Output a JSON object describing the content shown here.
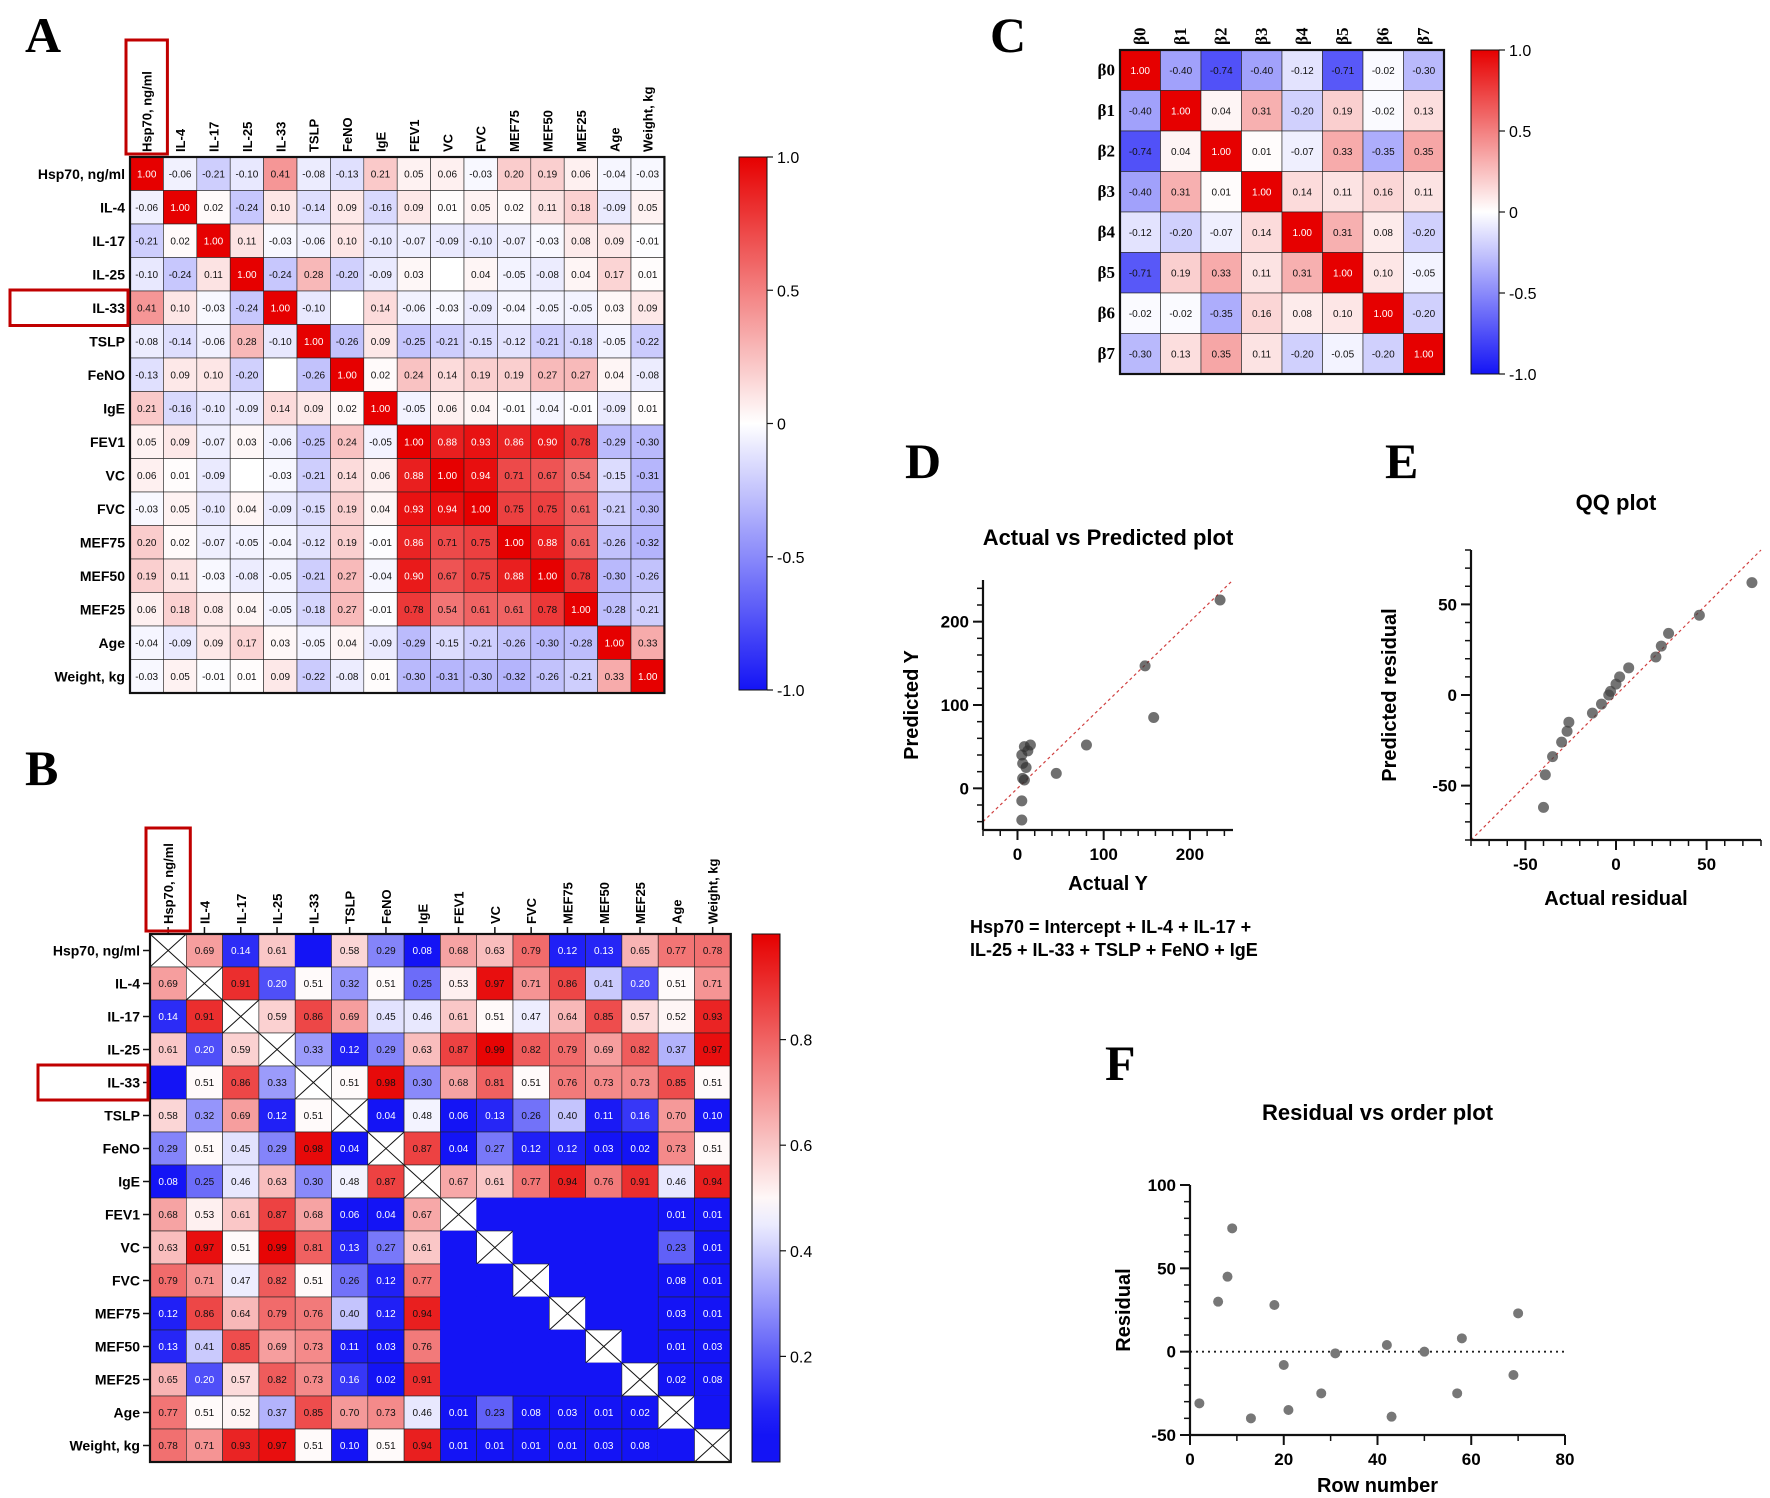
{
  "panel_labels": {
    "A": "A",
    "B": "B",
    "C": "C",
    "D": "D",
    "E": "E",
    "F": "F"
  },
  "chart_data": [
    {
      "id": "A",
      "type": "heatmap",
      "scale": "diverging",
      "cbar_range": [
        -1,
        1
      ],
      "cbar_ticks": [
        "1.0",
        "0.5",
        "0",
        "-0.5",
        "-1.0"
      ],
      "labels": [
        "Hsp70, ng/ml",
        "IL-4",
        "IL-17",
        "IL-25",
        "IL-33",
        "TSLP",
        "FeNO",
        "IgE",
        "FEV1",
        "VC",
        "FVC",
        "MEF75",
        "MEF50",
        "MEF25",
        "Age",
        "Weight, kg"
      ],
      "highlight": [
        0,
        4
      ],
      "values": [
        [
          "1.00",
          "-0.06",
          "-0.21",
          "-0.10",
          "0.41",
          "-0.08",
          "-0.13",
          "0.21",
          "0.05",
          "0.06",
          "-0.03",
          "0.20",
          "0.19",
          "0.06",
          "-0.04",
          "-0.03"
        ],
        [
          "-0.06",
          "1.00",
          "0.02",
          "-0.24",
          "0.10",
          "-0.14",
          "0.09",
          "-0.16",
          "0.09",
          "0.01",
          "0.05",
          "0.02",
          "0.11",
          "0.18",
          "-0.09",
          "0.05"
        ],
        [
          "-0.21",
          "0.02",
          "1.00",
          "0.11",
          "-0.03",
          "-0.06",
          "0.10",
          "-0.10",
          "-0.07",
          "-0.09",
          "-0.10",
          "-0.07",
          "-0.03",
          "0.08",
          "0.09",
          "-0.01"
        ],
        [
          "-0.10",
          "-0.24",
          "0.11",
          "1.00",
          "-0.24",
          "0.28",
          "-0.20",
          "-0.09",
          "0.03",
          "",
          "0.04",
          "-0.05",
          "-0.08",
          "0.04",
          "0.17",
          "0.01"
        ],
        [
          "0.41",
          "0.10",
          "-0.03",
          "-0.24",
          "1.00",
          "-0.10",
          "",
          "0.14",
          "-0.06",
          "-0.03",
          "-0.09",
          "-0.04",
          "-0.05",
          "-0.05",
          "0.03",
          "0.09"
        ],
        [
          "-0.08",
          "-0.14",
          "-0.06",
          "0.28",
          "-0.10",
          "1.00",
          "-0.26",
          "0.09",
          "-0.25",
          "-0.21",
          "-0.15",
          "-0.12",
          "-0.21",
          "-0.18",
          "-0.05",
          "-0.22"
        ],
        [
          "-0.13",
          "0.09",
          "0.10",
          "-0.20",
          "",
          "-0.26",
          "1.00",
          "0.02",
          "0.24",
          "0.14",
          "0.19",
          "0.19",
          "0.27",
          "0.27",
          "0.04",
          "-0.08"
        ],
        [
          "0.21",
          "-0.16",
          "-0.10",
          "-0.09",
          "0.14",
          "0.09",
          "0.02",
          "1.00",
          "-0.05",
          "0.06",
          "0.04",
          "-0.01",
          "-0.04",
          "-0.01",
          "-0.09",
          "0.01"
        ],
        [
          "0.05",
          "0.09",
          "-0.07",
          "0.03",
          "-0.06",
          "-0.25",
          "0.24",
          "-0.05",
          "1.00",
          "0.88",
          "0.93",
          "0.86",
          "0.90",
          "0.78",
          "-0.29",
          "-0.30"
        ],
        [
          "0.06",
          "0.01",
          "-0.09",
          "",
          "-0.03",
          "-0.21",
          "0.14",
          "0.06",
          "0.88",
          "1.00",
          "0.94",
          "0.71",
          "0.67",
          "0.54",
          "-0.15",
          "-0.31"
        ],
        [
          "-0.03",
          "0.05",
          "-0.10",
          "0.04",
          "-0.09",
          "-0.15",
          "0.19",
          "0.04",
          "0.93",
          "0.94",
          "1.00",
          "0.75",
          "0.75",
          "0.61",
          "-0.21",
          "-0.30"
        ],
        [
          "0.20",
          "0.02",
          "-0.07",
          "-0.05",
          "-0.04",
          "-0.12",
          "0.19",
          "-0.01",
          "0.86",
          "0.71",
          "0.75",
          "1.00",
          "0.88",
          "0.61",
          "-0.26",
          "-0.32"
        ],
        [
          "0.19",
          "0.11",
          "-0.03",
          "-0.08",
          "-0.05",
          "-0.21",
          "0.27",
          "-0.04",
          "0.90",
          "0.67",
          "0.75",
          "0.88",
          "1.00",
          "0.78",
          "-0.30",
          "-0.26"
        ],
        [
          "0.06",
          "0.18",
          "0.08",
          "0.04",
          "-0.05",
          "-0.18",
          "0.27",
          "-0.01",
          "0.78",
          "0.54",
          "0.61",
          "0.61",
          "0.78",
          "1.00",
          "-0.28",
          "-0.21"
        ],
        [
          "-0.04",
          "-0.09",
          "0.09",
          "0.17",
          "0.03",
          "-0.05",
          "0.04",
          "-0.09",
          "-0.29",
          "-0.15",
          "-0.21",
          "-0.26",
          "-0.30",
          "-0.28",
          "1.00",
          "0.33"
        ],
        [
          "-0.03",
          "0.05",
          "-0.01",
          "0.01",
          "0.09",
          "-0.22",
          "-0.08",
          "0.01",
          "-0.30",
          "-0.31",
          "-0.30",
          "-0.32",
          "-0.26",
          "-0.21",
          "0.33",
          "1.00"
        ]
      ]
    },
    {
      "id": "B",
      "type": "heatmap",
      "scale": "pvalue",
      "cbar_range": [
        0,
        1
      ],
      "cbar_ticks": [
        "0.8",
        "0.6",
        "0.4",
        "0.2"
      ],
      "labels": [
        "Hsp70, ng/ml",
        "IL-4",
        "IL-17",
        "IL-25",
        "IL-33",
        "TSLP",
        "FeNO",
        "IgE",
        "FEV1",
        "VC",
        "FVC",
        "MEF75",
        "MEF50",
        "MEF25",
        "Age",
        "Weight, kg"
      ],
      "highlight": [
        0,
        4
      ],
      "values": [
        [
          "X",
          "0.69",
          "0.14",
          "0.61",
          "",
          "0.58",
          "0.29",
          "0.08",
          "0.68",
          "0.63",
          "0.79",
          "0.12",
          "0.13",
          "0.65",
          "0.77",
          "0.78"
        ],
        [
          "0.69",
          "X",
          "0.91",
          "0.20",
          "0.51",
          "0.32",
          "0.51",
          "0.25",
          "0.53",
          "0.97",
          "0.71",
          "0.86",
          "0.41",
          "0.20",
          "0.51",
          "0.71"
        ],
        [
          "0.14",
          "0.91",
          "X",
          "0.59",
          "0.86",
          "0.69",
          "0.45",
          "0.46",
          "0.61",
          "0.51",
          "0.47",
          "0.64",
          "0.85",
          "0.57",
          "0.52",
          "0.93"
        ],
        [
          "0.61",
          "0.20",
          "0.59",
          "X",
          "0.33",
          "0.12",
          "0.29",
          "0.63",
          "0.87",
          "0.99",
          "0.82",
          "0.79",
          "0.69",
          "0.82",
          "0.37",
          "0.97"
        ],
        [
          "",
          "0.51",
          "0.86",
          "0.33",
          "X",
          "0.51",
          "0.98",
          "0.30",
          "0.68",
          "0.81",
          "0.51",
          "0.76",
          "0.73",
          "0.73",
          "0.85",
          "0.51"
        ],
        [
          "0.58",
          "0.32",
          "0.69",
          "0.12",
          "0.51",
          "X",
          "0.04",
          "0.48",
          "0.06",
          "0.13",
          "0.26",
          "0.40",
          "0.11",
          "0.16",
          "0.70",
          "0.10"
        ],
        [
          "0.29",
          "0.51",
          "0.45",
          "0.29",
          "0.98",
          "0.04",
          "X",
          "0.87",
          "0.04",
          "0.27",
          "0.12",
          "0.12",
          "0.03",
          "0.02",
          "0.73",
          "0.51"
        ],
        [
          "0.08",
          "0.25",
          "0.46",
          "0.63",
          "0.30",
          "0.48",
          "0.87",
          "X",
          "0.67",
          "0.61",
          "0.77",
          "0.94",
          "0.76",
          "0.91",
          "0.46",
          "0.94"
        ],
        [
          "0.68",
          "0.53",
          "0.61",
          "0.87",
          "0.68",
          "0.06",
          "0.04",
          "0.67",
          "X",
          "",
          "",
          "",
          "",
          "",
          "0.01",
          "0.01"
        ],
        [
          "0.63",
          "0.97",
          "0.51",
          "0.99",
          "0.81",
          "0.13",
          "0.27",
          "0.61",
          "",
          "X",
          "",
          "",
          "",
          "",
          "0.23",
          "0.01"
        ],
        [
          "0.79",
          "0.71",
          "0.47",
          "0.82",
          "0.51",
          "0.26",
          "0.12",
          "0.77",
          "",
          "",
          "X",
          "",
          "",
          "",
          "0.08",
          "0.01"
        ],
        [
          "0.12",
          "0.86",
          "0.64",
          "0.79",
          "0.76",
          "0.40",
          "0.12",
          "0.94",
          "",
          "",
          "",
          "X",
          "",
          "",
          "0.03",
          "0.01"
        ],
        [
          "0.13",
          "0.41",
          "0.85",
          "0.69",
          "0.73",
          "0.11",
          "0.03",
          "0.76",
          "",
          "",
          "",
          "",
          "X",
          "",
          "0.01",
          "0.03"
        ],
        [
          "0.65",
          "0.20",
          "0.57",
          "0.82",
          "0.73",
          "0.16",
          "0.02",
          "0.91",
          "",
          "",
          "",
          "",
          "",
          "X",
          "0.02",
          "0.08"
        ],
        [
          "0.77",
          "0.51",
          "0.52",
          "0.37",
          "0.85",
          "0.70",
          "0.73",
          "0.46",
          "0.01",
          "0.23",
          "0.08",
          "0.03",
          "0.01",
          "0.02",
          "X",
          ""
        ],
        [
          "0.78",
          "0.71",
          "0.93",
          "0.97",
          "0.51",
          "0.10",
          "0.51",
          "0.94",
          "0.01",
          "0.01",
          "0.01",
          "0.01",
          "0.03",
          "0.08",
          "",
          "X"
        ]
      ]
    },
    {
      "id": "C",
      "type": "heatmap",
      "scale": "diverging",
      "cbar_range": [
        -1,
        1
      ],
      "cbar_ticks": [
        "1.0",
        "0.5",
        "0",
        "-0.5",
        "-1.0"
      ],
      "labels": [
        "β0",
        "β1",
        "β2",
        "β3",
        "β4",
        "β5",
        "β6",
        "β7"
      ],
      "values": [
        [
          "1.00",
          "-0.40",
          "-0.74",
          "-0.40",
          "-0.12",
          "-0.71",
          "-0.02",
          "-0.30"
        ],
        [
          "-0.40",
          "1.00",
          "0.04",
          "0.31",
          "-0.20",
          "0.19",
          "-0.02",
          "0.13"
        ],
        [
          "-0.74",
          "0.04",
          "1.00",
          "0.01",
          "-0.07",
          "0.33",
          "-0.35",
          "0.35"
        ],
        [
          "-0.40",
          "0.31",
          "0.01",
          "1.00",
          "0.14",
          "0.11",
          "0.16",
          "0.11"
        ],
        [
          "-0.12",
          "-0.20",
          "-0.07",
          "0.14",
          "1.00",
          "0.31",
          "0.08",
          "-0.20"
        ],
        [
          "-0.71",
          "0.19",
          "0.33",
          "0.11",
          "0.31",
          "1.00",
          "0.10",
          "-0.05"
        ],
        [
          "-0.02",
          "-0.02",
          "-0.35",
          "0.16",
          "0.08",
          "0.10",
          "1.00",
          "-0.20"
        ],
        [
          "-0.30",
          "0.13",
          "0.35",
          "0.11",
          "-0.20",
          "-0.05",
          "-0.20",
          "1.00"
        ]
      ]
    },
    {
      "id": "D",
      "type": "scatter",
      "title": "Actual vs Predicted plot",
      "xlabel": "Actual Y",
      "ylabel": "Predicted Y",
      "xlim": [
        -40,
        250
      ],
      "ylim": [
        -50,
        250
      ],
      "xticks": [
        "0",
        "100",
        "200"
      ],
      "yticks": [
        "0",
        "100",
        "200"
      ],
      "points": [
        [
          8,
          50
        ],
        [
          12,
          45
        ],
        [
          5,
          40
        ],
        [
          15,
          52
        ],
        [
          6,
          30
        ],
        [
          10,
          25
        ],
        [
          6,
          12
        ],
        [
          8,
          10
        ],
        [
          5,
          -15
        ],
        [
          5,
          -38
        ],
        [
          45,
          18
        ],
        [
          80,
          52
        ],
        [
          148,
          147
        ],
        [
          158,
          85
        ],
        [
          235,
          226
        ]
      ],
      "identity_line": true,
      "equation_line1": "Hsp70 = Intercept + IL-4 + IL-17 +",
      "equation_line2": "IL-25 + IL-33 + TSLP + FeNO + IgE"
    },
    {
      "id": "E",
      "type": "scatter",
      "title": "QQ plot",
      "xlabel": "Actual residual",
      "ylabel": "Predicted residual",
      "xlim": [
        -80,
        80
      ],
      "ylim": [
        -80,
        80
      ],
      "xticks": [
        "-50",
        "0",
        "50"
      ],
      "yticks": [
        "50",
        "0",
        "-50"
      ],
      "points": [
        [
          -40,
          -62
        ],
        [
          -39,
          -44
        ],
        [
          -35,
          -34
        ],
        [
          -30,
          -26
        ],
        [
          -27,
          -20
        ],
        [
          -26,
          -15
        ],
        [
          -13,
          -10
        ],
        [
          -8,
          -5
        ],
        [
          -4,
          0
        ],
        [
          -3,
          2
        ],
        [
          0,
          6
        ],
        [
          2,
          10
        ],
        [
          7,
          15
        ],
        [
          22,
          21
        ],
        [
          25,
          27
        ],
        [
          29,
          34
        ],
        [
          46,
          44
        ],
        [
          75,
          62
        ]
      ],
      "identity_line": true
    },
    {
      "id": "F",
      "type": "scatter",
      "title": "Residual vs order plot",
      "xlabel": "Row number",
      "ylabel": "Residual",
      "xlim": [
        0,
        80
      ],
      "ylim": [
        -50,
        100
      ],
      "xticks": [
        "0",
        "20",
        "40",
        "60",
        "80"
      ],
      "yticks": [
        "100",
        "50",
        "0",
        "-50"
      ],
      "points": [
        [
          2,
          -31
        ],
        [
          6,
          30
        ],
        [
          8,
          45
        ],
        [
          9,
          74
        ],
        [
          13,
          -40
        ],
        [
          18,
          28
        ],
        [
          20,
          -8
        ],
        [
          21,
          -35
        ],
        [
          28,
          -25
        ],
        [
          31,
          -1
        ],
        [
          42,
          4
        ],
        [
          43,
          -39
        ],
        [
          50,
          0
        ],
        [
          57,
          -25
        ],
        [
          58,
          8
        ],
        [
          69,
          -14
        ],
        [
          70,
          23
        ]
      ],
      "zero_line": true
    }
  ]
}
